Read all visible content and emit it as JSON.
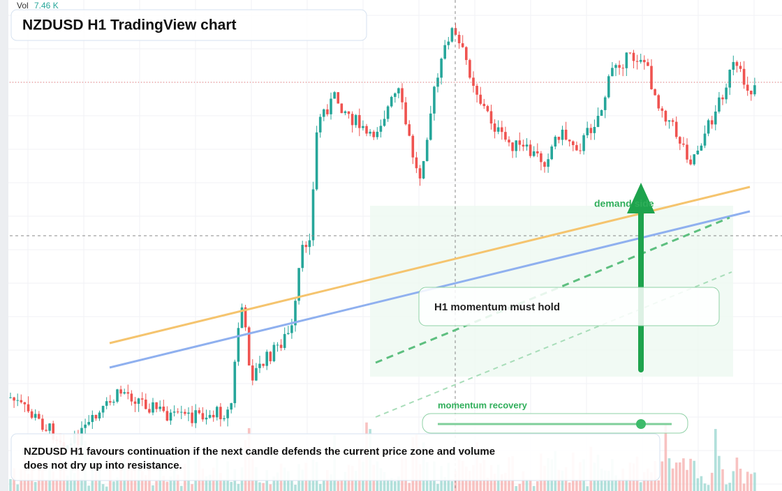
{
  "header": {
    "vol_label": "Vol",
    "vol_value": "7.46 K",
    "title": "NZDUSD H1 TradingView chart"
  },
  "annotations": {
    "zone_label": "demand side",
    "momentum_box": "H1 momentum must hold",
    "slider_label": "momentum recovery"
  },
  "caption": {
    "line1": "NZDUSD H1 favours continuation if the next candle defends the current price zone and volume",
    "line2": "does not dry up into resistance."
  }
}
